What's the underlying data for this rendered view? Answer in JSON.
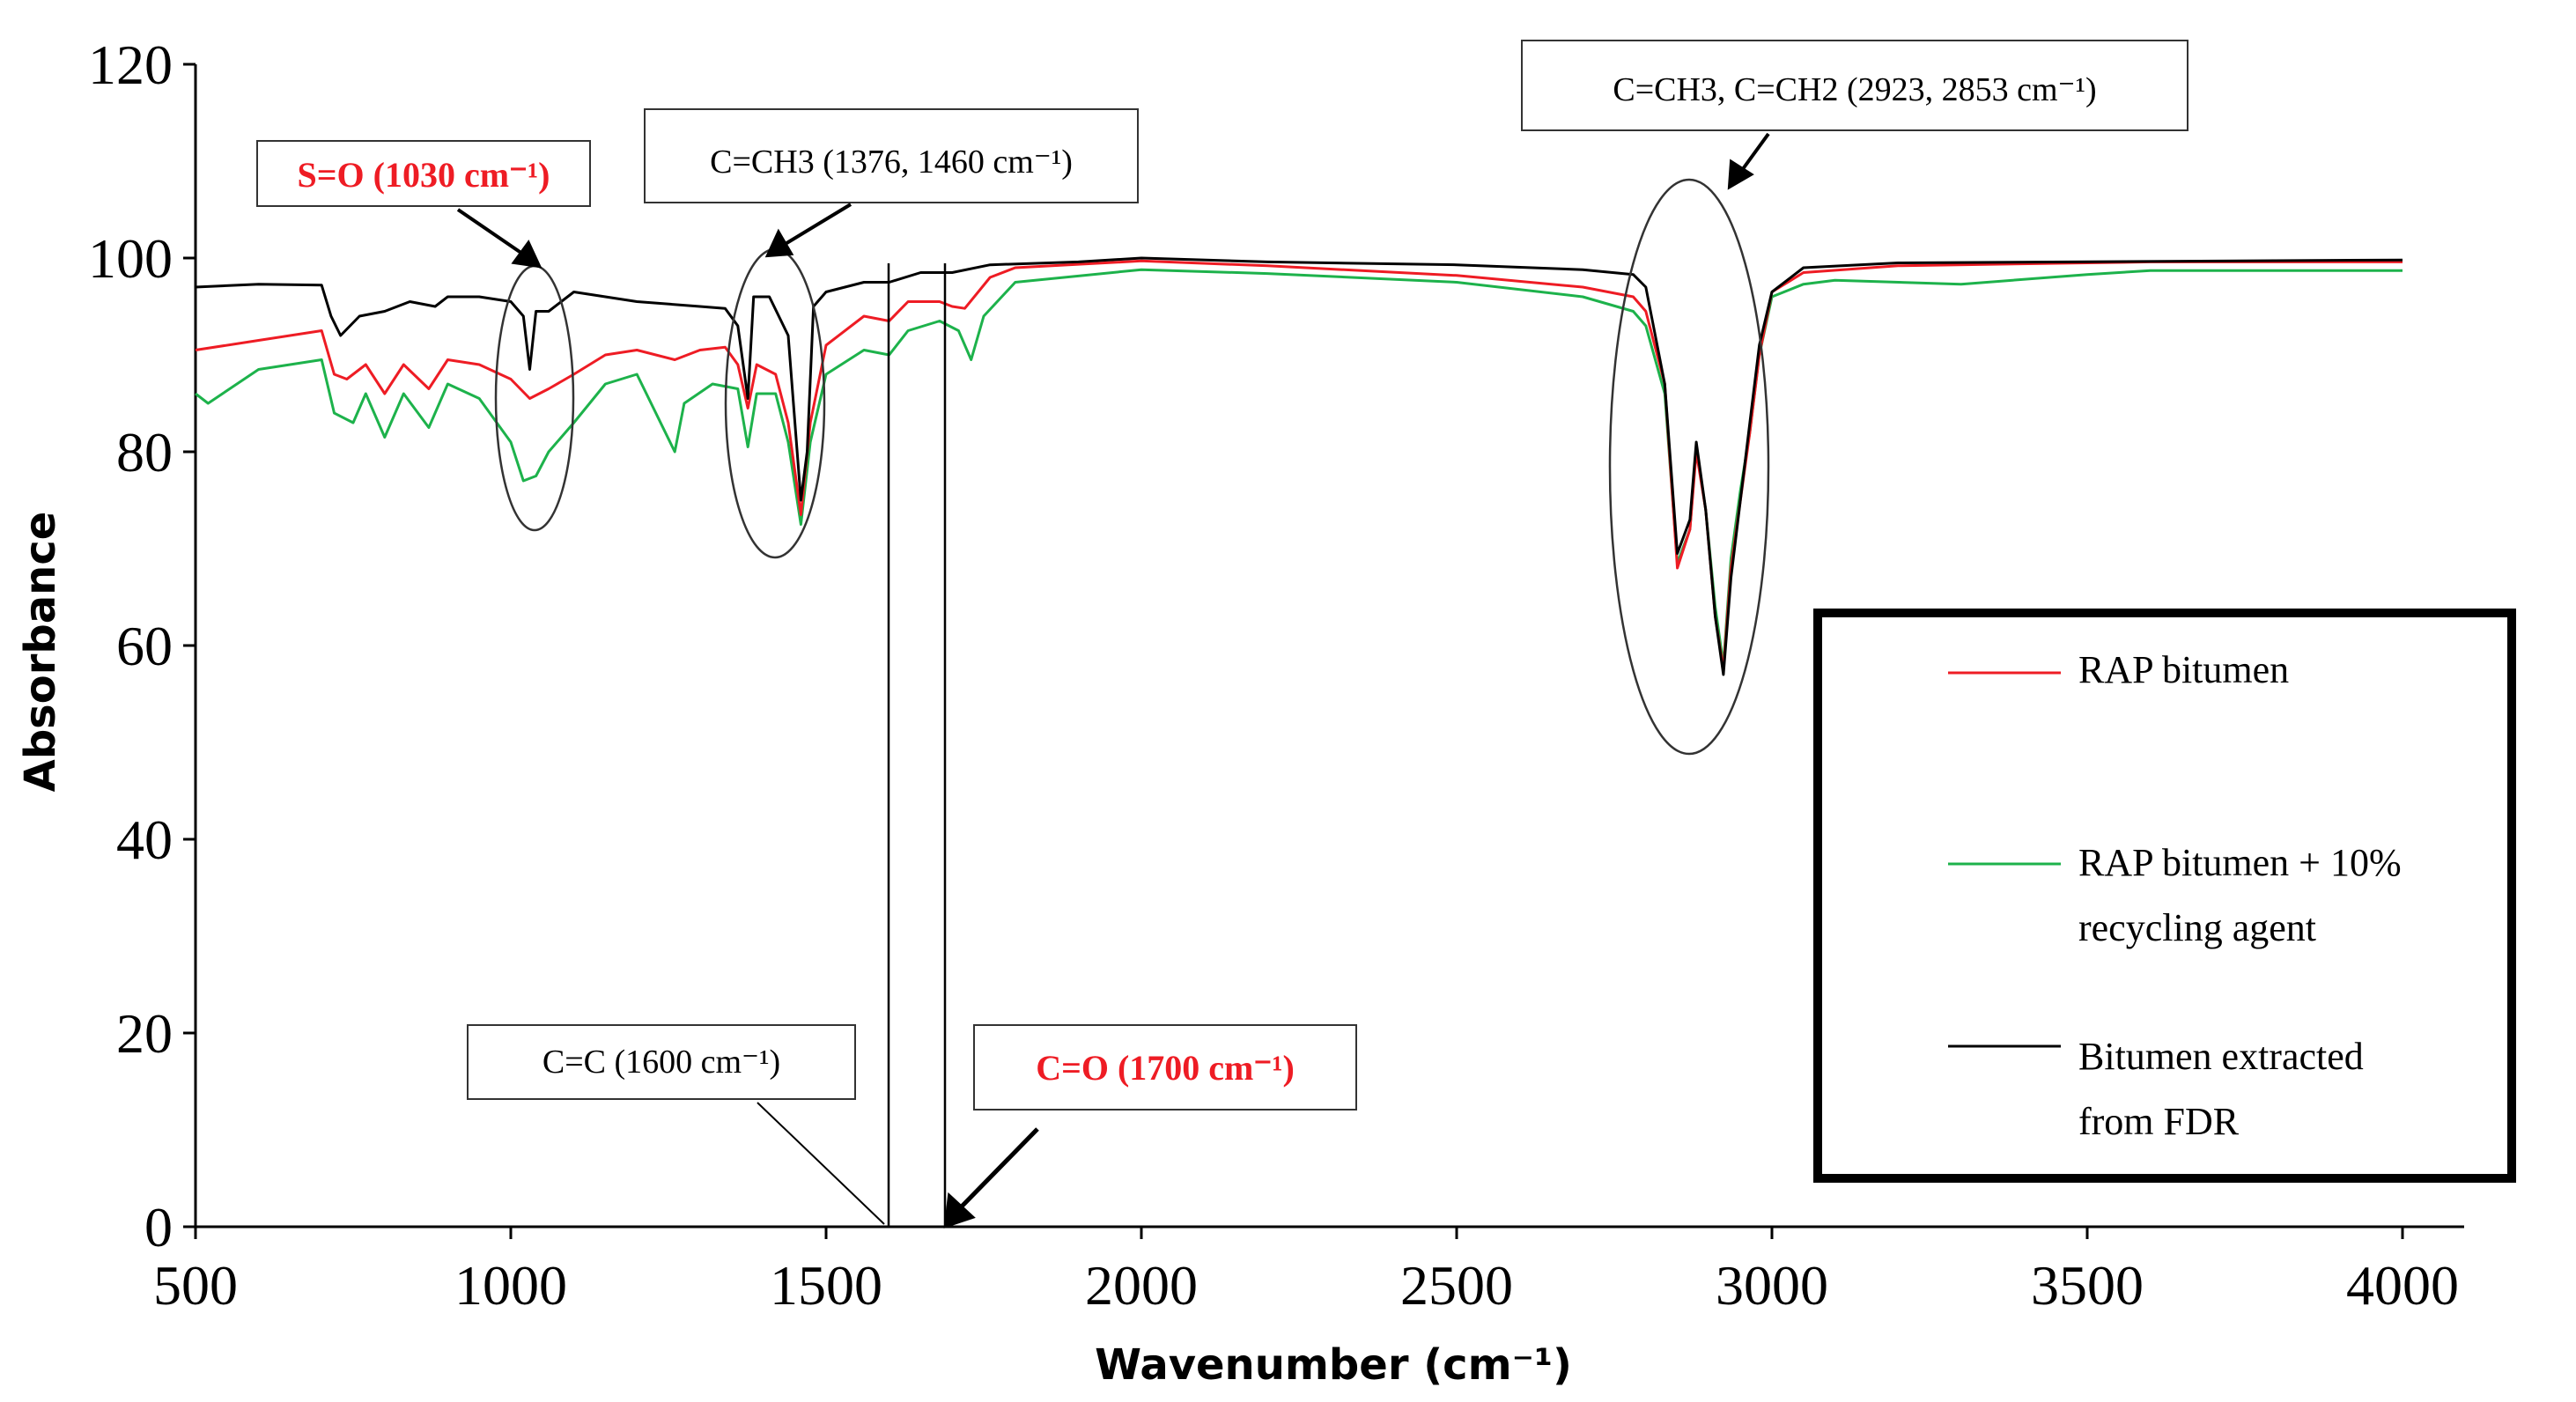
{
  "chart_data": {
    "type": "line",
    "title": "",
    "xlabel": "Wavenumber (cm⁻¹)",
    "ylabel": "Absorbance",
    "xlim": [
      500,
      4000
    ],
    "ylim": [
      0,
      120
    ],
    "x_ticks": [
      "500",
      "1000",
      "1500",
      "2000",
      "2500",
      "3000",
      "3500",
      "4000"
    ],
    "y_ticks": [
      "0",
      "20",
      "40",
      "60",
      "80",
      "100",
      "120"
    ],
    "legend_position": "right",
    "colors": {
      "rap": "#ee1c24",
      "rap_ra": "#1db24b",
      "fdr": "#000000",
      "annotation_red": "#ee1c24"
    },
    "series": [
      {
        "name": "RAP bitumen",
        "color": "#ee1c24",
        "points": [
          [
            500,
            90.5
          ],
          [
            600,
            91.5
          ],
          [
            700,
            92.5
          ],
          [
            720,
            88
          ],
          [
            740,
            87.5
          ],
          [
            770,
            89
          ],
          [
            800,
            86
          ],
          [
            830,
            89
          ],
          [
            870,
            86.5
          ],
          [
            900,
            89.5
          ],
          [
            950,
            89
          ],
          [
            1000,
            87.5
          ],
          [
            1030,
            85.5
          ],
          [
            1060,
            86.5
          ],
          [
            1100,
            88
          ],
          [
            1150,
            90
          ],
          [
            1200,
            90.5
          ],
          [
            1260,
            89.5
          ],
          [
            1300,
            90.5
          ],
          [
            1340,
            90.8
          ],
          [
            1360,
            89
          ],
          [
            1376,
            84.5
          ],
          [
            1390,
            89
          ],
          [
            1420,
            88
          ],
          [
            1440,
            83
          ],
          [
            1460,
            73.5
          ],
          [
            1475,
            83
          ],
          [
            1500,
            91
          ],
          [
            1560,
            94
          ],
          [
            1600,
            93.5
          ],
          [
            1630,
            95.5
          ],
          [
            1680,
            95.5
          ],
          [
            1700,
            95
          ],
          [
            1720,
            94.8
          ],
          [
            1760,
            98
          ],
          [
            1800,
            99
          ],
          [
            2000,
            99.7
          ],
          [
            2200,
            99.2
          ],
          [
            2500,
            98.2
          ],
          [
            2700,
            97
          ],
          [
            2780,
            96
          ],
          [
            2800,
            94.5
          ],
          [
            2830,
            87
          ],
          [
            2850,
            68
          ],
          [
            2870,
            72
          ],
          [
            2880,
            80
          ],
          [
            2895,
            74
          ],
          [
            2910,
            63
          ],
          [
            2923,
            57.5
          ],
          [
            2935,
            68
          ],
          [
            2950,
            75
          ],
          [
            2965,
            82
          ],
          [
            2980,
            90
          ],
          [
            3000,
            96.5
          ],
          [
            3050,
            98.5
          ],
          [
            3200,
            99.2
          ],
          [
            3500,
            99.5
          ],
          [
            3600,
            99.6
          ],
          [
            4000,
            99.6
          ]
        ]
      },
      {
        "name": "RAP bitumen + 10% recycling agent",
        "color": "#1db24b",
        "points": [
          [
            500,
            86
          ],
          [
            520,
            85
          ],
          [
            600,
            88.5
          ],
          [
            700,
            89.5
          ],
          [
            720,
            84
          ],
          [
            750,
            83
          ],
          [
            770,
            86
          ],
          [
            800,
            81.5
          ],
          [
            830,
            86
          ],
          [
            870,
            82.5
          ],
          [
            900,
            87
          ],
          [
            950,
            85.5
          ],
          [
            1000,
            81
          ],
          [
            1020,
            77
          ],
          [
            1040,
            77.5
          ],
          [
            1060,
            80
          ],
          [
            1100,
            83
          ],
          [
            1150,
            87
          ],
          [
            1200,
            88
          ],
          [
            1260,
            80
          ],
          [
            1275,
            85
          ],
          [
            1320,
            87
          ],
          [
            1360,
            86.5
          ],
          [
            1376,
            80.5
          ],
          [
            1390,
            86
          ],
          [
            1420,
            86
          ],
          [
            1440,
            81
          ],
          [
            1460,
            72.5
          ],
          [
            1475,
            81
          ],
          [
            1500,
            88
          ],
          [
            1560,
            90.5
          ],
          [
            1600,
            90
          ],
          [
            1630,
            92.5
          ],
          [
            1680,
            93.5
          ],
          [
            1710,
            92.5
          ],
          [
            1730,
            89.5
          ],
          [
            1750,
            94
          ],
          [
            1800,
            97.5
          ],
          [
            2000,
            98.8
          ],
          [
            2200,
            98.4
          ],
          [
            2500,
            97.5
          ],
          [
            2700,
            96
          ],
          [
            2780,
            94.5
          ],
          [
            2800,
            93
          ],
          [
            2830,
            86
          ],
          [
            2850,
            68.5
          ],
          [
            2870,
            72
          ],
          [
            2880,
            80.5
          ],
          [
            2895,
            74
          ],
          [
            2910,
            64
          ],
          [
            2923,
            58
          ],
          [
            2935,
            69
          ],
          [
            2950,
            76
          ],
          [
            2965,
            82
          ],
          [
            2980,
            90
          ],
          [
            3000,
            96
          ],
          [
            3050,
            97.3
          ],
          [
            3100,
            97.7
          ],
          [
            3300,
            97.3
          ],
          [
            3500,
            98.3
          ],
          [
            3600,
            98.7
          ],
          [
            4000,
            98.7
          ]
        ]
      },
      {
        "name": "Bitumen extracted from FDR",
        "color": "#000000",
        "points": [
          [
            500,
            97
          ],
          [
            600,
            97.3
          ],
          [
            700,
            97.2
          ],
          [
            715,
            94
          ],
          [
            730,
            92
          ],
          [
            760,
            94
          ],
          [
            800,
            94.5
          ],
          [
            840,
            95.5
          ],
          [
            880,
            95
          ],
          [
            900,
            96
          ],
          [
            950,
            96
          ],
          [
            1000,
            95.5
          ],
          [
            1020,
            94
          ],
          [
            1030,
            88.5
          ],
          [
            1040,
            94.5
          ],
          [
            1060,
            94.5
          ],
          [
            1080,
            95.5
          ],
          [
            1100,
            96.5
          ],
          [
            1200,
            95.5
          ],
          [
            1300,
            95
          ],
          [
            1340,
            94.8
          ],
          [
            1360,
            93
          ],
          [
            1376,
            85.5
          ],
          [
            1385,
            96
          ],
          [
            1410,
            96
          ],
          [
            1440,
            92
          ],
          [
            1460,
            75
          ],
          [
            1470,
            80
          ],
          [
            1480,
            95
          ],
          [
            1500,
            96.5
          ],
          [
            1560,
            97.5
          ],
          [
            1600,
            97.5
          ],
          [
            1650,
            98.5
          ],
          [
            1700,
            98.5
          ],
          [
            1760,
            99.3
          ],
          [
            1900,
            99.6
          ],
          [
            2000,
            100
          ],
          [
            2200,
            99.6
          ],
          [
            2500,
            99.3
          ],
          [
            2700,
            98.8
          ],
          [
            2780,
            98.3
          ],
          [
            2800,
            97
          ],
          [
            2830,
            87
          ],
          [
            2850,
            69.5
          ],
          [
            2870,
            73
          ],
          [
            2880,
            81
          ],
          [
            2895,
            74
          ],
          [
            2910,
            63
          ],
          [
            2923,
            57
          ],
          [
            2935,
            67
          ],
          [
            2950,
            75
          ],
          [
            2965,
            83
          ],
          [
            2980,
            91
          ],
          [
            3000,
            96.5
          ],
          [
            3050,
            99
          ],
          [
            3200,
            99.5
          ],
          [
            4000,
            99.8
          ]
        ]
      }
    ],
    "annotations": {
      "so": "S=O (1030 cm⁻¹)",
      "ch3_low": "C=CH3 (1376, 1460 cm⁻¹)",
      "ch3_high": "C=CH3, C=CH2 (2923, 2853 cm⁻¹)",
      "cc": "C=C (1600 cm⁻¹)",
      "co": "C=O (1700 cm⁻¹)"
    },
    "legend": {
      "rap_line1": "RAP bitumen",
      "rap_ra_line1": "RAP bitumen + 10%",
      "rap_ra_line2": "recycling agent",
      "fdr_line1": "Bitumen extracted",
      "fdr_line2": "from FDR"
    }
  }
}
